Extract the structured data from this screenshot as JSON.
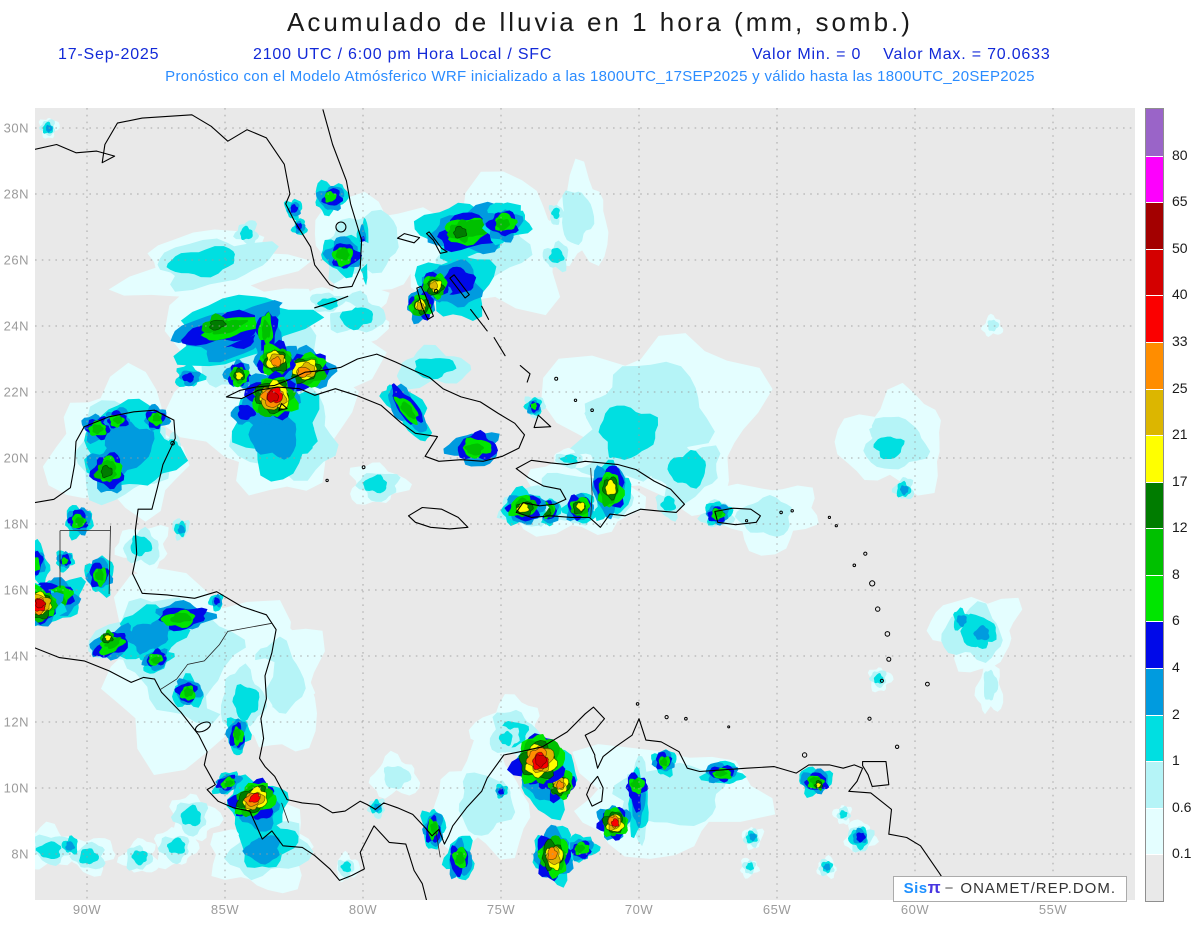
{
  "header": {
    "title": "Acumulado de lluvia en 1 hora (mm, somb.)",
    "date": "17-Sep-2025",
    "valid_time": "2100 UTC / 6:00 pm Hora Local / SFC",
    "valor_min": "Valor Min. = 0",
    "valor_max": "Valor Max. = 70.0633",
    "model_info": "Pronóstico con el Modelo Atmósferico WRF inicializado a las 1800UTC_17SEP2025 y válido hasta las 1800UTC_20SEP2025"
  },
  "watermark": {
    "sis": "Sis",
    "pi": "π",
    "sep": "−",
    "org": "ONAMET/REP.DOM."
  },
  "style_colors": {
    "title_text": "#1a1a1a",
    "subtitle_text": "#1229d8",
    "model_text": "#2b8cff",
    "axis_label": "#9b9b9b",
    "map_background": "#e9e9e9",
    "grid": "#9c9c9c",
    "coastline": "#000000"
  },
  "chart_data": {
    "type": "heatmap",
    "title": "Acumulado de lluvia en 1 hora (mm, somb.)",
    "units": "mm",
    "value_min": 0,
    "value_max": 70.0633,
    "lon_range_west_deg": [
      91.9,
      52.0
    ],
    "lat_range_north_deg": [
      6.6,
      30.6
    ],
    "grid": "dotted, 5 deg lon x 2 deg lat",
    "legend_position": "right",
    "lat_ticks": [
      {
        "label": "30N",
        "value": 30
      },
      {
        "label": "28N",
        "value": 28
      },
      {
        "label": "26N",
        "value": 26
      },
      {
        "label": "24N",
        "value": 24
      },
      {
        "label": "22N",
        "value": 22
      },
      {
        "label": "20N",
        "value": 20
      },
      {
        "label": "18N",
        "value": 18
      },
      {
        "label": "16N",
        "value": 16
      },
      {
        "label": "14N",
        "value": 14
      },
      {
        "label": "12N",
        "value": 12
      },
      {
        "label": "10N",
        "value": 10
      },
      {
        "label": "8N",
        "value": 8
      }
    ],
    "lon_ticks": [
      {
        "label": "90W",
        "value": 90
      },
      {
        "label": "85W",
        "value": 85
      },
      {
        "label": "80W",
        "value": 80
      },
      {
        "label": "75W",
        "value": 75
      },
      {
        "label": "70W",
        "value": 70
      },
      {
        "label": "65W",
        "value": 65
      },
      {
        "label": "60W",
        "value": 60
      },
      {
        "label": "55W",
        "value": 55
      }
    ],
    "levels": [
      0.1,
      0.6,
      1,
      2,
      4,
      6,
      8,
      12,
      17,
      21,
      25,
      33,
      40,
      50,
      65,
      80
    ],
    "colorbar_labels": [
      "0.1",
      "0.6",
      "1",
      "2",
      "4",
      "6",
      "8",
      "12",
      "17",
      "21",
      "25",
      "33",
      "40",
      "50",
      "65",
      "80"
    ],
    "below_color": "#e9e9e9",
    "level_colors": [
      "#e4feff",
      "#b5f4f7",
      "#00dfe1",
      "#009bdf",
      "#0009e9",
      "#00e500",
      "#00c000",
      "#007c00",
      "#ffff00",
      "#dcb600",
      "#ff8d00",
      "#fb0000",
      "#d40000",
      "#a30000",
      "#fd00fd",
      "#9a64c8"
    ],
    "feature_format": [
      "lon_w",
      "lat_n",
      "rx_deg",
      "ry_deg",
      "rot_deg",
      "peak_band",
      "base_band"
    ],
    "features": [
      [
        85.6,
        25.9,
        2.9,
        0.95,
        -8,
        1,
        0.1
      ],
      [
        79.8,
        26.5,
        2.1,
        1.5,
        0,
        0.6,
        0.1
      ],
      [
        75.5,
        26.3,
        2.8,
        1.9,
        -15,
        0.6,
        0.1
      ],
      [
        83.6,
        22.7,
        3.5,
        2.6,
        -18,
        0.6,
        0.1
      ],
      [
        82.9,
        20.8,
        2.5,
        1.8,
        0,
        1,
        0.1
      ],
      [
        88.9,
        20.3,
        2.3,
        2.0,
        0,
        1,
        0.1
      ],
      [
        86.2,
        13.8,
        3.5,
        2.7,
        0,
        0.6,
        0.1
      ],
      [
        69.3,
        21.4,
        3.7,
        2.4,
        8,
        0.6,
        0.1
      ],
      [
        70.4,
        20.7,
        1.8,
        1.4,
        0,
        1,
        0.6
      ],
      [
        68.3,
        19.6,
        1.2,
        0.9,
        0,
        1,
        0.6
      ],
      [
        60.8,
        20.4,
        1.9,
        1.4,
        0,
        0.6,
        0.1
      ],
      [
        60.9,
        20.35,
        0.9,
        0.6,
        0,
        1,
        0.6
      ],
      [
        57.8,
        14.75,
        1.5,
        1.1,
        0,
        1,
        0.1
      ],
      [
        75.6,
        9.6,
        1.7,
        1.6,
        0,
        0.6,
        0.1
      ],
      [
        69.0,
        9.8,
        3.3,
        1.6,
        0,
        0.6,
        0.1
      ],
      [
        83.2,
        13.2,
        1.7,
        1.9,
        0,
        0.6,
        0.1
      ],
      [
        72.4,
        18.8,
        2.1,
        1.2,
        0,
        0.6,
        0.1
      ],
      [
        65.3,
        18.2,
        1.7,
        1.0,
        0,
        0.6,
        0.1
      ],
      [
        74.6,
        11.7,
        1.2,
        0.9,
        0,
        1,
        0.1
      ],
      [
        79.5,
        19.2,
        1.0,
        0.6,
        0,
        1,
        0.1
      ],
      [
        88.0,
        17.3,
        0.9,
        0.7,
        0,
        1,
        0.1
      ],
      [
        72.2,
        27.3,
        1.0,
        1.4,
        0,
        0.6,
        0.1
      ],
      [
        73.0,
        27.4,
        0.25,
        0.3,
        0,
        1,
        0.6
      ],
      [
        80.3,
        24.3,
        1.4,
        0.8,
        0,
        1,
        0.1
      ],
      [
        91.3,
        8.15,
        1.0,
        0.6,
        0,
        1,
        0.1
      ],
      [
        89.9,
        7.95,
        0.8,
        0.55,
        0,
        1,
        0.1
      ],
      [
        88.1,
        7.9,
        0.65,
        0.5,
        0,
        1,
        0.1
      ],
      [
        86.8,
        8.2,
        0.75,
        0.55,
        0,
        1,
        0.1
      ],
      [
        83.5,
        8.2,
        1.8,
        1.15,
        -15,
        2,
        0.1
      ],
      [
        57.2,
        24.0,
        0.35,
        0.3,
        0,
        0.6,
        0.1
      ],
      [
        91.4,
        30.0,
        0.33,
        0.3,
        0,
        2,
        0.1
      ],
      [
        84.2,
        26.8,
        0.4,
        0.35,
        0,
        1,
        0.6
      ],
      [
        81.15,
        27.9,
        0.6,
        0.45,
        -20,
        6,
        1
      ],
      [
        82.5,
        27.55,
        0.3,
        0.3,
        0,
        4,
        1
      ],
      [
        82.3,
        27.0,
        0.25,
        0.25,
        0,
        4,
        1
      ],
      [
        80.7,
        26.15,
        0.85,
        0.65,
        0,
        8,
        0.6
      ],
      [
        80.0,
        26.35,
        0.22,
        0.85,
        0,
        4,
        1
      ],
      [
        81.3,
        24.7,
        0.85,
        0.4,
        0,
        1,
        0.1
      ],
      [
        76.1,
        26.9,
        1.75,
        0.8,
        -8,
        8,
        1
      ],
      [
        76.5,
        26.85,
        0.4,
        0.3,
        0,
        12,
        8
      ],
      [
        74.9,
        27.1,
        0.8,
        0.55,
        0,
        8,
        1
      ],
      [
        76.6,
        25.3,
        1.3,
        0.95,
        0,
        4,
        1
      ],
      [
        77.4,
        25.2,
        0.55,
        0.45,
        0,
        21,
        2
      ],
      [
        77.9,
        24.6,
        0.5,
        0.42,
        0,
        21,
        2
      ],
      [
        73.0,
        26.1,
        0.45,
        0.4,
        0,
        1,
        0.6
      ],
      [
        84.6,
        23.8,
        2.3,
        0.95,
        -15,
        4,
        1
      ],
      [
        84.9,
        23.95,
        1.9,
        0.5,
        -14,
        8,
        2
      ],
      [
        85.3,
        24.05,
        0.5,
        0.25,
        -14,
        12,
        8
      ],
      [
        83.5,
        23.85,
        0.45,
        0.8,
        0,
        8,
        2
      ],
      [
        83.15,
        22.95,
        0.7,
        0.55,
        0,
        25,
        2
      ],
      [
        82.1,
        22.65,
        0.95,
        0.6,
        -10,
        25,
        2
      ],
      [
        83.25,
        21.85,
        0.9,
        0.7,
        0,
        40,
        2
      ],
      [
        84.5,
        22.5,
        0.45,
        0.4,
        0,
        17,
        2
      ],
      [
        86.3,
        22.45,
        0.5,
        0.32,
        0,
        4,
        1
      ],
      [
        83.2,
        20.8,
        1.5,
        1.25,
        0,
        2,
        1
      ],
      [
        84.2,
        21.4,
        0.55,
        0.4,
        0,
        4,
        2
      ],
      [
        78.4,
        21.5,
        0.5,
        1.0,
        -38,
        8,
        1
      ],
      [
        75.9,
        20.3,
        0.9,
        0.5,
        0,
        8,
        2
      ],
      [
        77.5,
        22.7,
        1.3,
        0.55,
        -5,
        1,
        0.6
      ],
      [
        73.8,
        21.55,
        0.35,
        0.32,
        0,
        6,
        0.6
      ],
      [
        60.4,
        19.05,
        0.35,
        0.32,
        0,
        2,
        0.6
      ],
      [
        58.3,
        15.1,
        0.32,
        0.3,
        0,
        2,
        1
      ],
      [
        57.6,
        14.7,
        0.48,
        0.38,
        0,
        2,
        1
      ],
      [
        57.3,
        13.1,
        0.45,
        0.8,
        0,
        0.6,
        0.1
      ],
      [
        61.3,
        13.3,
        0.4,
        0.35,
        0,
        1,
        0.1
      ],
      [
        74.15,
        18.5,
        0.85,
        0.55,
        -10,
        17,
        0.6
      ],
      [
        73.3,
        18.4,
        0.5,
        0.45,
        0,
        12,
        0.6
      ],
      [
        72.15,
        18.5,
        0.6,
        0.5,
        0,
        17,
        0.6
      ],
      [
        71.05,
        19.05,
        0.75,
        0.9,
        0,
        17,
        0.6
      ],
      [
        72.5,
        19.95,
        0.7,
        0.3,
        0,
        1,
        0.1
      ],
      [
        68.9,
        18.6,
        0.45,
        0.4,
        0,
        1,
        0.6
      ],
      [
        67.15,
        18.3,
        0.55,
        0.4,
        0,
        8,
        0.6
      ],
      [
        89.6,
        20.9,
        0.55,
        0.4,
        0,
        8,
        2
      ],
      [
        88.9,
        21.15,
        0.45,
        0.32,
        0,
        8,
        2
      ],
      [
        87.5,
        21.2,
        0.42,
        0.35,
        0,
        8,
        2
      ],
      [
        89.2,
        19.65,
        0.7,
        0.65,
        0,
        8,
        2
      ],
      [
        89.3,
        19.6,
        0.35,
        0.3,
        0,
        12,
        8
      ],
      [
        90.3,
        18.1,
        0.5,
        0.45,
        0,
        8,
        1
      ],
      [
        89.55,
        16.45,
        0.5,
        0.55,
        0,
        8,
        1
      ],
      [
        88.4,
        20.3,
        1.5,
        1.3,
        0,
        2,
        1
      ],
      [
        86.6,
        17.85,
        0.3,
        0.3,
        0,
        2,
        0.6
      ],
      [
        86.9,
        20.4,
        0.35,
        0.3,
        0,
        1,
        0.6
      ],
      [
        91.75,
        15.55,
        0.78,
        0.62,
        0,
        40,
        1
      ],
      [
        91.2,
        15.75,
        1.05,
        0.6,
        -10,
        12,
        1
      ],
      [
        91.9,
        16.8,
        0.5,
        0.6,
        0,
        6,
        1
      ],
      [
        90.8,
        16.9,
        0.32,
        0.3,
        0,
        6,
        1
      ],
      [
        87.8,
        14.6,
        1.7,
        1.05,
        -15,
        2,
        0.6
      ],
      [
        86.6,
        15.15,
        1.05,
        0.42,
        -5,
        8,
        2
      ],
      [
        89.1,
        14.35,
        0.85,
        0.38,
        -28,
        8,
        2
      ],
      [
        89.25,
        14.55,
        0.25,
        0.2,
        0,
        17,
        8
      ],
      [
        87.5,
        13.9,
        0.55,
        0.35,
        -20,
        8,
        1
      ],
      [
        85.3,
        15.65,
        0.25,
        0.25,
        0,
        4,
        1
      ],
      [
        86.35,
        12.9,
        0.55,
        0.45,
        0,
        8,
        1
      ],
      [
        84.55,
        11.6,
        0.4,
        0.55,
        0,
        8,
        1
      ],
      [
        84.3,
        12.7,
        1.1,
        1.2,
        0,
        1,
        0.1
      ],
      [
        83.8,
        9.4,
        1.05,
        0.85,
        -25,
        4,
        1
      ],
      [
        83.95,
        9.65,
        0.8,
        0.5,
        -33,
        33,
        4
      ],
      [
        84.9,
        10.15,
        0.55,
        0.3,
        -25,
        8,
        1
      ],
      [
        86.2,
        9.1,
        0.85,
        0.7,
        0,
        1,
        0.1
      ],
      [
        79.5,
        9.4,
        0.3,
        0.28,
        0,
        2,
        0.6
      ],
      [
        78.8,
        10.3,
        0.85,
        0.6,
        0,
        0.6,
        0.1
      ],
      [
        77.45,
        8.75,
        0.4,
        0.6,
        0,
        8,
        1
      ],
      [
        76.5,
        7.85,
        0.5,
        0.65,
        0,
        8,
        1
      ],
      [
        80.6,
        7.6,
        0.42,
        0.38,
        0,
        1,
        0.1
      ],
      [
        73.3,
        10.3,
        1.0,
        1.0,
        0,
        4,
        1
      ],
      [
        73.6,
        10.85,
        0.85,
        0.75,
        0,
        40,
        4
      ],
      [
        72.85,
        10.1,
        0.5,
        0.45,
        0,
        25,
        4
      ],
      [
        73.1,
        7.95,
        0.7,
        0.8,
        0,
        25,
        1
      ],
      [
        72.1,
        8.15,
        0.55,
        0.38,
        -15,
        8,
        1
      ],
      [
        70.9,
        8.95,
        0.55,
        0.5,
        0,
        33,
        2
      ],
      [
        70.05,
        9.6,
        0.45,
        1.2,
        0,
        4,
        0.6
      ],
      [
        70.1,
        10.1,
        0.38,
        0.33,
        0,
        8,
        4
      ],
      [
        69.1,
        10.8,
        0.42,
        0.38,
        0,
        8,
        1
      ],
      [
        67.0,
        10.45,
        0.68,
        0.34,
        0,
        8,
        1
      ],
      [
        63.6,
        10.2,
        0.6,
        0.4,
        0,
        8,
        1
      ],
      [
        63.5,
        10.1,
        0.18,
        0.16,
        0,
        17,
        8
      ],
      [
        62.0,
        8.5,
        0.52,
        0.47,
        0,
        4,
        0.1
      ],
      [
        65.9,
        8.5,
        0.36,
        0.32,
        0,
        2,
        0.1
      ],
      [
        63.2,
        7.6,
        0.34,
        0.3,
        0,
        2,
        0.1
      ],
      [
        66.0,
        7.6,
        0.32,
        0.28,
        0,
        1,
        0.1
      ],
      [
        62.6,
        9.2,
        0.32,
        0.28,
        0,
        1,
        0.1
      ],
      [
        75.0,
        9.9,
        0.28,
        0.26,
        0,
        4,
        0.6
      ],
      [
        74.8,
        11.5,
        0.42,
        0.36,
        0,
        1,
        0.6
      ],
      [
        90.6,
        8.25,
        0.28,
        0.25,
        0,
        2,
        1
      ]
    ]
  }
}
